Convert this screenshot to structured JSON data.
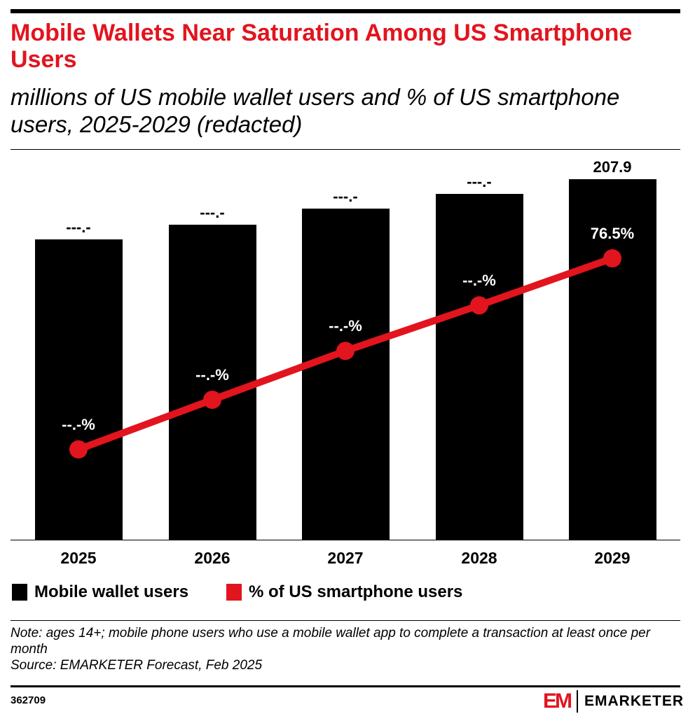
{
  "header": {
    "title": "Mobile Wallets Near Saturation Among US Smartphone Users",
    "subtitle": "millions of US mobile wallet users and % of US smartphone users, 2025-2029 (redacted)"
  },
  "chart_data": {
    "type": "bar",
    "categories": [
      "2025",
      "2026",
      "2027",
      "2028",
      "2029"
    ],
    "series": [
      {
        "name": "Mobile wallet users",
        "type": "bar",
        "color": "#000000",
        "values": [
          173.2,
          181.7,
          191.0,
          199.4,
          207.9
        ],
        "labels": [
          "---.-",
          "---.-",
          "---.-",
          "---.-",
          "207.9"
        ]
      },
      {
        "name": "% of US smartphone users",
        "type": "line",
        "color": "#e2141e",
        "values": [
          24.5,
          38.0,
          51.3,
          63.7,
          76.5
        ],
        "labels": [
          "--.-%",
          "--.-%",
          "--.-%",
          "--.-%",
          "76.5%"
        ]
      }
    ],
    "ylim": [
      0,
      207.9
    ],
    "grid": false,
    "legend": "bottom-left"
  },
  "note": "Note: ages 14+; mobile phone users who use a mobile wallet app to complete a transaction at least once per month",
  "source": "Source: EMARKETER Forecast, Feb 2025",
  "footer": {
    "id": "362709",
    "brand": "EMARKETER",
    "brand_mark": "EM"
  }
}
